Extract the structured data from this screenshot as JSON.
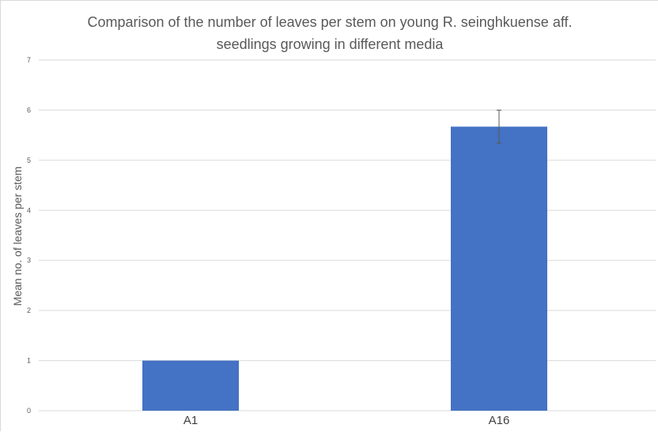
{
  "chart_data": {
    "type": "bar",
    "title_lines": [
      "Comparison of the number of leaves per stem on young R. seinghkuense aff.",
      "seedlings growing in different media"
    ],
    "xlabel": "",
    "ylabel": "Mean no. of leaves per stem",
    "categories": [
      "A1",
      "A16"
    ],
    "values": [
      1.0,
      5.67
    ],
    "error_bars": [
      0.0,
      0.33
    ],
    "ylim": [
      0,
      7
    ],
    "yticks": [
      "0",
      "1",
      "2",
      "3",
      "4",
      "5",
      "6",
      "7"
    ],
    "grid": true,
    "legend": "none",
    "bar_color": "#4472C4",
    "grid_color": "#d9d9d9",
    "errorbar_color": "#595959"
  }
}
